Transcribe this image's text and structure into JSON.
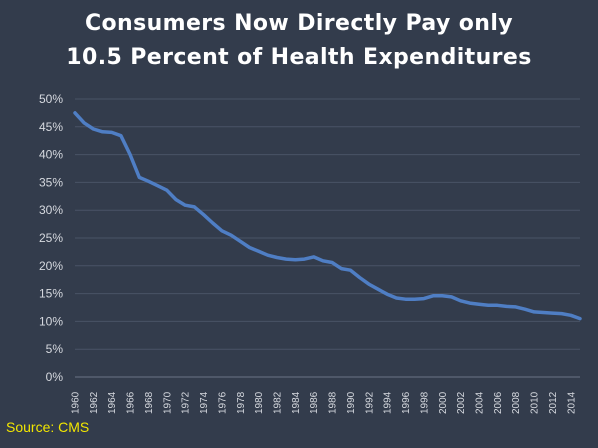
{
  "title_line1": "Consumers Now Directly Pay only",
  "title_line2": "10.5 Percent of Health Expenditures",
  "source": "Source: CMS",
  "chart_data": {
    "type": "line",
    "title": "Consumers Now Directly Pay only 10.5 Percent of Health Expenditures",
    "xlabel": "",
    "ylabel": "",
    "xlim": [
      1960,
      2015
    ],
    "ylim": [
      0,
      50
    ],
    "y_ticks": [
      "0%",
      "5%",
      "10%",
      "15%",
      "20%",
      "25%",
      "30%",
      "35%",
      "40%",
      "45%",
      "50%"
    ],
    "x_ticks": [
      "1960",
      "1962",
      "1964",
      "1966",
      "1968",
      "1970",
      "1972",
      "1974",
      "1976",
      "1978",
      "1980",
      "1982",
      "1984",
      "1986",
      "1988",
      "1990",
      "1992",
      "1994",
      "1996",
      "1998",
      "2000",
      "2002",
      "2004",
      "2006",
      "2008",
      "2010",
      "2012",
      "2014"
    ],
    "grid": true,
    "legend": "none",
    "line_color": "#4f7ec4",
    "grid_color": "#4a5366",
    "series": [
      {
        "x": [
          1960,
          1961,
          1962,
          1963,
          1964,
          1965,
          1966,
          1967,
          1968,
          1969,
          1970,
          1971,
          1972,
          1973,
          1974,
          1975,
          1976,
          1977,
          1978,
          1979,
          1980,
          1981,
          1982,
          1983,
          1984,
          1985,
          1986,
          1987,
          1988,
          1989,
          1990,
          1991,
          1992,
          1993,
          1994,
          1995,
          1996,
          1997,
          1998,
          1999,
          2000,
          2001,
          2002,
          2003,
          2004,
          2005,
          2006,
          2007,
          2008,
          2009,
          2010,
          2011,
          2012,
          2013,
          2014,
          2015
        ],
        "values": [
          47.5,
          45.7,
          44.6,
          44.1,
          44.0,
          43.4,
          40.0,
          35.9,
          35.2,
          34.4,
          33.6,
          31.9,
          30.9,
          30.6,
          29.2,
          27.7,
          26.3,
          25.5,
          24.4,
          23.3,
          22.6,
          21.9,
          21.5,
          21.2,
          21.1,
          21.2,
          21.6,
          20.9,
          20.6,
          19.5,
          19.2,
          17.9,
          16.7,
          15.8,
          14.9,
          14.2,
          14.0,
          14.0,
          14.1,
          14.6,
          14.6,
          14.4,
          13.7,
          13.3,
          13.1,
          12.9,
          12.9,
          12.7,
          12.6,
          12.2,
          11.7,
          11.6,
          11.5,
          11.4,
          11.1,
          10.5
        ]
      }
    ]
  }
}
